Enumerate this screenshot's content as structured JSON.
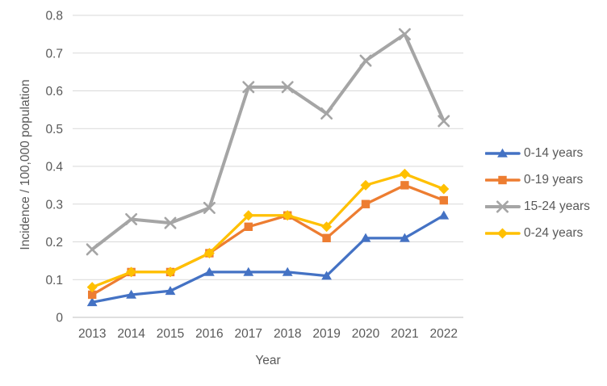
{
  "chart_data": {
    "type": "line",
    "title": "",
    "x": [
      "2013",
      "2014",
      "2015",
      "2016",
      "2017",
      "2018",
      "2019",
      "2020",
      "2021",
      "2022"
    ],
    "series": [
      {
        "name": "0-14 years",
        "color": "#4472C4",
        "marker": "triangle",
        "values": [
          0.04,
          0.06,
          0.07,
          0.12,
          0.12,
          0.12,
          0.11,
          0.21,
          0.21,
          0.27
        ]
      },
      {
        "name": "0-19 years",
        "color": "#ED7D31",
        "marker": "square",
        "values": [
          0.06,
          0.12,
          0.12,
          0.17,
          0.24,
          0.27,
          0.21,
          0.3,
          0.35,
          0.31
        ]
      },
      {
        "name": "15-24 years",
        "color": "#A5A5A5",
        "marker": "x",
        "values": [
          0.18,
          0.26,
          0.25,
          0.29,
          0.61,
          0.61,
          0.54,
          0.68,
          0.75,
          0.52
        ]
      },
      {
        "name": "0-24 years",
        "color": "#FFC000",
        "marker": "diamond",
        "values": [
          0.08,
          0.12,
          0.12,
          0.17,
          0.27,
          0.27,
          0.24,
          0.35,
          0.38,
          0.34
        ]
      }
    ],
    "xlabel": "Year",
    "ylabel": "Incidence / 100,000 population",
    "ylim": [
      0,
      0.8
    ],
    "ytick_step": 0.1,
    "grid": true,
    "legend_position": "right",
    "colors": {
      "gridline": "#D9D9D9",
      "axis_line": "#BFBFBF",
      "text": "#595959"
    }
  }
}
